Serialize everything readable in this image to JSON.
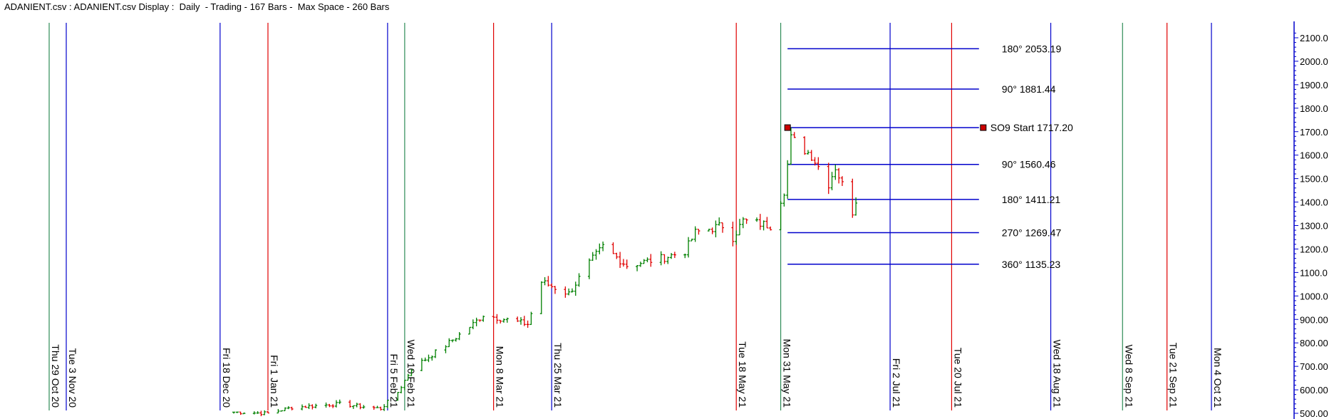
{
  "header": {
    "title": "ADANIENT.csv : ADANIENT.csv Display :  Daily  - Trading - 167 Bars -  Max Space - 260 Bars"
  },
  "colors": {
    "up": "#008000",
    "down": "#e00000",
    "blue": "#0000cc",
    "red": "#e00000",
    "green": "#2e8b57",
    "marker": "#cc0000"
  },
  "chart_data": {
    "type": "ohlc",
    "ylim": [
      480,
      2130
    ],
    "y_ticks": [
      {
        "value": 2100,
        "label": "2100.0"
      },
      {
        "value": 2000,
        "label": "2000.0"
      },
      {
        "value": 1900,
        "label": "1900.0"
      },
      {
        "value": 1800,
        "label": "1800.0"
      },
      {
        "value": 1700,
        "label": "1700.0"
      },
      {
        "value": 1600,
        "label": "1600.0"
      },
      {
        "value": 1500,
        "label": "1500.0"
      },
      {
        "value": 1400,
        "label": "1400.0"
      },
      {
        "value": 1300,
        "label": "1300.0"
      },
      {
        "value": 1200,
        "label": "1200.0"
      },
      {
        "value": 1100,
        "label": "1100.0"
      },
      {
        "value": 1000,
        "label": "1000.0"
      },
      {
        "value": 900,
        "label": "900.00"
      },
      {
        "value": 800,
        "label": "800.00"
      },
      {
        "value": 700,
        "label": "700.00"
      },
      {
        "value": 600,
        "label": "600.00"
      },
      {
        "value": 500,
        "label": "500.00"
      }
    ],
    "time_lines": [
      {
        "date": "2020-10-29",
        "label": "Thu 29 Oct 20",
        "color": "green"
      },
      {
        "date": "2020-11-03",
        "label": "Tue 3 Nov 20",
        "color": "blue"
      },
      {
        "date": "2020-12-18",
        "label": "Fri 18 Dec 20",
        "color": "blue"
      },
      {
        "date": "2021-01-01",
        "label": "Fri 1 Jan 21",
        "color": "red"
      },
      {
        "date": "2021-02-05",
        "label": "Fri 5 Feb 21",
        "color": "blue"
      },
      {
        "date": "2021-02-10",
        "label": "Wed 10 Feb 21",
        "color": "green"
      },
      {
        "date": "2021-03-08",
        "label": "Mon 8 Mar 21",
        "color": "red"
      },
      {
        "date": "2021-03-25",
        "label": "Thu 25 Mar 21",
        "color": "blue"
      },
      {
        "date": "2021-05-18",
        "label": "Tue 18 May 21",
        "color": "red"
      },
      {
        "date": "2021-05-31",
        "label": "Mon 31 May 21",
        "color": "green"
      },
      {
        "date": "2021-07-02",
        "label": "Fri 2 Jul 21",
        "color": "blue"
      },
      {
        "date": "2021-07-20",
        "label": "Tue 20 Jul 21",
        "color": "red"
      },
      {
        "date": "2021-08-18",
        "label": "Wed 18 Aug 21",
        "color": "blue"
      },
      {
        "date": "2021-09-08",
        "label": "Wed 8 Sep 21",
        "color": "green"
      },
      {
        "date": "2021-09-21",
        "label": "Tue 21 Sep 21",
        "color": "red"
      },
      {
        "date": "2021-10-04",
        "label": "Mon 4 Oct 21",
        "color": "blue"
      }
    ],
    "price_levels": [
      {
        "value": 2053.19,
        "label": "180° 2053.19"
      },
      {
        "value": 1881.44,
        "label": "90° 1881.44"
      },
      {
        "value": 1717.2,
        "label": "SO9 Start 1717.20",
        "start": true
      },
      {
        "value": 1560.46,
        "label": "90° 1560.46"
      },
      {
        "value": 1411.21,
        "label": "180° 1411.21"
      },
      {
        "value": 1269.47,
        "label": "270° 1269.47"
      },
      {
        "value": 1135.23,
        "label": "360° 1135.23"
      }
    ],
    "levels_from": "2021-06-02",
    "levels_to": "2021-07-28",
    "start_marker": {
      "date": "2021-06-02",
      "value": 1717.2
    },
    "series_anchors": [
      {
        "date": "2020-12-22",
        "value": 505
      },
      {
        "date": "2021-01-01",
        "value": 500
      },
      {
        "date": "2021-01-08",
        "value": 525
      },
      {
        "date": "2021-01-22",
        "value": 540
      },
      {
        "date": "2021-02-03",
        "value": 520
      },
      {
        "date": "2021-02-08",
        "value": 590
      },
      {
        "date": "2021-02-12",
        "value": 690
      },
      {
        "date": "2021-02-22",
        "value": 790
      },
      {
        "date": "2021-03-02",
        "value": 880
      },
      {
        "date": "2021-03-05",
        "value": 920
      },
      {
        "date": "2021-03-18",
        "value": 880
      },
      {
        "date": "2021-03-22",
        "value": 1060
      },
      {
        "date": "2021-03-30",
        "value": 1010
      },
      {
        "date": "2021-04-05",
        "value": 1140
      },
      {
        "date": "2021-04-09",
        "value": 1210
      },
      {
        "date": "2021-04-16",
        "value": 1130
      },
      {
        "date": "2021-04-26",
        "value": 1160
      },
      {
        "date": "2021-05-03",
        "value": 1190
      },
      {
        "date": "2021-05-06",
        "value": 1270
      },
      {
        "date": "2021-05-14",
        "value": 1300
      },
      {
        "date": "2021-05-17",
        "value": 1250
      },
      {
        "date": "2021-05-20",
        "value": 1320
      },
      {
        "date": "2021-05-28",
        "value": 1300
      },
      {
        "date": "2021-06-01",
        "value": 1450
      },
      {
        "date": "2021-06-03",
        "value": 1670
      },
      {
        "date": "2021-06-09",
        "value": 1600
      },
      {
        "date": "2021-06-14",
        "value": 1480
      },
      {
        "date": "2021-06-16",
        "value": 1550
      },
      {
        "date": "2021-06-21",
        "value": 1360
      },
      {
        "date": "2021-06-23",
        "value": 1460
      }
    ]
  }
}
